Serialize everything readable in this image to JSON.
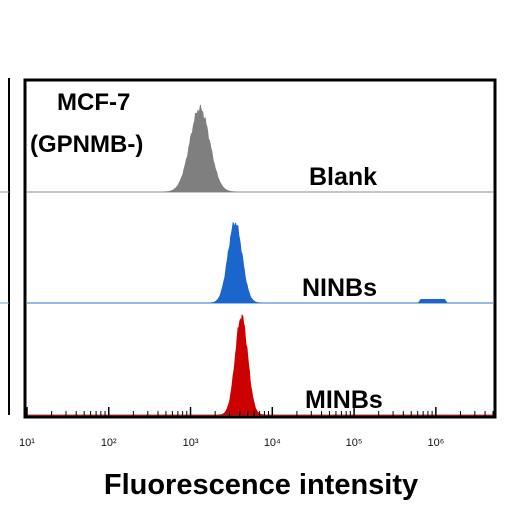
{
  "chart_data": {
    "type": "area",
    "cell_line": "MCF-7",
    "cell_line_status": "(GPNMB-)",
    "xlabel": "Fluorescence intensity",
    "xscale": "log",
    "xlim": [
      10,
      5000000
    ],
    "x_ticks": [
      {
        "value": 10,
        "label": "10¹"
      },
      {
        "value": 100,
        "label": "10²"
      },
      {
        "value": 1000,
        "label": "10³"
      },
      {
        "value": 10000,
        "label": "10⁴"
      },
      {
        "value": 100000,
        "label": "10⁵"
      },
      {
        "value": 1000000,
        "label": "10⁶"
      }
    ],
    "grid": false,
    "series": [
      {
        "name": "Blank",
        "color": "#7f7f7f",
        "peak": 1300,
        "log_sd": 0.12
      },
      {
        "name": "NINBs",
        "color": "#1a66cc",
        "peak": 3500,
        "log_sd": 0.085
      },
      {
        "name": "MINBs",
        "color": "#cc0000",
        "peak": 4200,
        "log_sd": 0.075
      }
    ]
  }
}
